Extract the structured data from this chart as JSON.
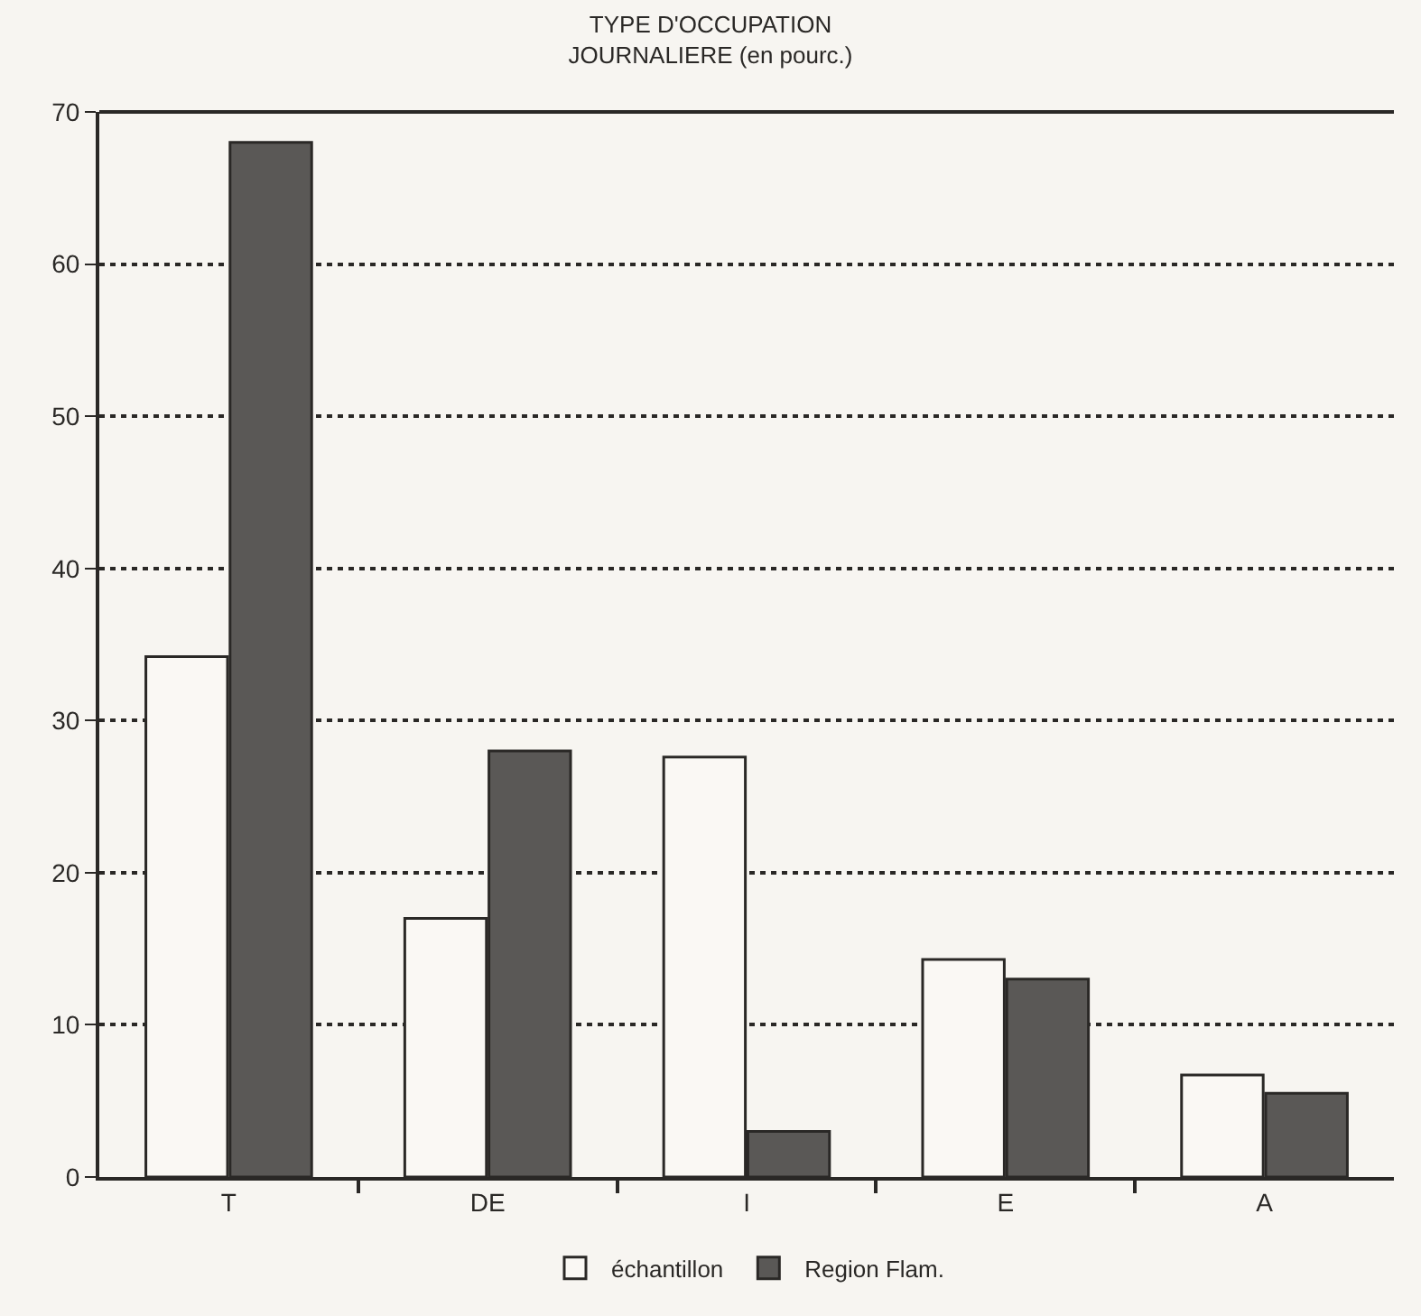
{
  "chart_data": {
    "type": "bar",
    "title": "TYPE D'OCCUPATION\nJOURNALIERE (en pourc.)",
    "categories": [
      "T",
      "DE",
      "I",
      "E",
      "A"
    ],
    "series": [
      {
        "name": "échantillon",
        "color": "#faf8f4",
        "values": [
          34.2,
          17.0,
          27.6,
          14.3,
          6.7
        ]
      },
      {
        "name": "Region Flam.",
        "color": "#5a5856",
        "values": [
          68.0,
          28.0,
          3.0,
          13.0,
          5.5
        ]
      }
    ],
    "ylim": [
      0,
      70
    ],
    "yticks": [
      0,
      10,
      20,
      30,
      40,
      50,
      60,
      70
    ],
    "grid": "y",
    "legend": "bottom"
  }
}
